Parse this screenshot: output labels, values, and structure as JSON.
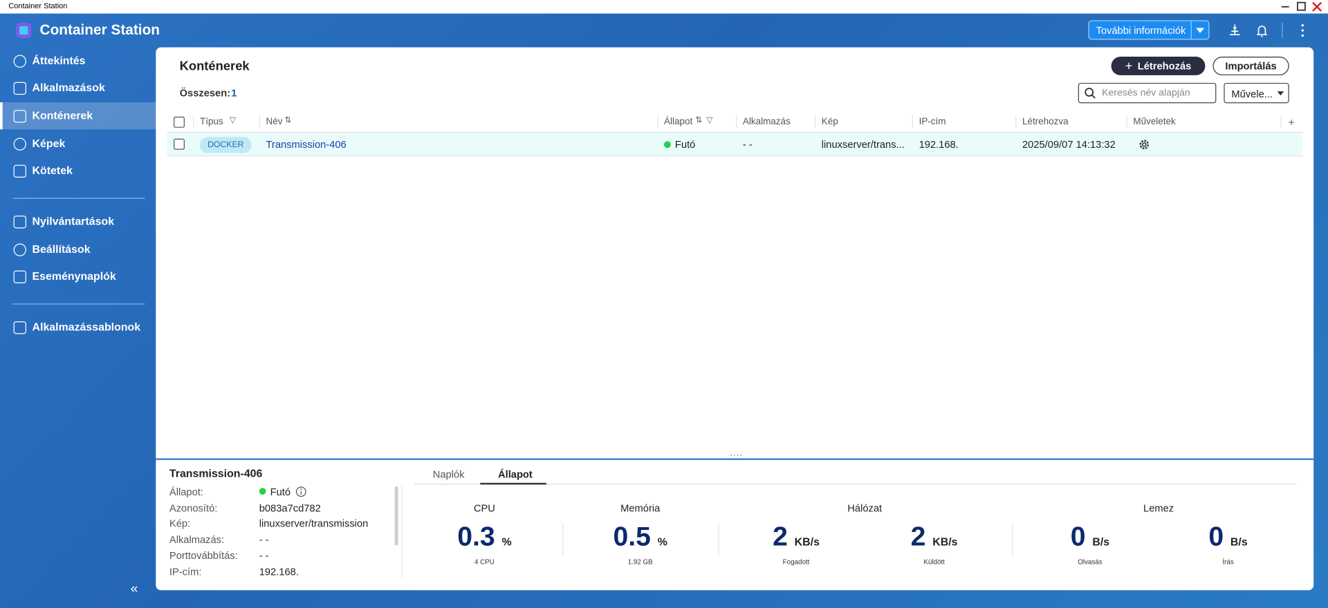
{
  "window_title": "Container Station",
  "app_title": "Container Station",
  "header": {
    "more_info": "További információk"
  },
  "sidebar": {
    "items": [
      "Áttekintés",
      "Alkalmazások",
      "Konténerek",
      "Képek",
      "Kötetek",
      "Nyilvántartások",
      "Beállítások",
      "Eseménynaplók",
      "Alkalmazássablonok"
    ]
  },
  "main": {
    "title": "Konténerek",
    "total_label": "Összesen:",
    "total": 1,
    "create": "Létrehozás",
    "import": "Importálás",
    "search_placeholder": "Keresés név alapján",
    "actions": "Művele..."
  },
  "table": {
    "columns": [
      "Típus",
      "Név",
      "Állapot",
      "Alkalmazás",
      "Kép",
      "IP-cím",
      "Létrehozva",
      "Műveletek"
    ],
    "rows": [
      [
        "DOCKER",
        "Transmission-406",
        "Futó",
        "- -",
        "linuxserver/trans...",
        "192.168.",
        "2025/09/07 14:13:32"
      ]
    ]
  },
  "detail": {
    "title": "Transmission-406",
    "fields": [
      [
        "Állapot:",
        "Futó"
      ],
      [
        "Azonosító:",
        "b083a7cd782"
      ],
      [
        "Kép:",
        "linuxserver/transmission"
      ],
      [
        "Alkalmazás:",
        "- -"
      ],
      [
        "Porttovábbítás:",
        "- -"
      ],
      [
        "IP-cím:",
        "192.168."
      ]
    ],
    "tabs": [
      "Naplók",
      "Állapot"
    ],
    "groups": [
      "CPU",
      "Memória",
      "Hálózat",
      "Lemez"
    ],
    "metrics": [
      {
        "value": 0.3,
        "unit": "%",
        "caption": "4 CPU"
      },
      {
        "value": 0.5,
        "unit": "%",
        "caption": "1.92 GB"
      },
      {
        "value": 2,
        "unit": "KB/s",
        "caption": "Fogadott"
      },
      {
        "value": 2,
        "unit": "KB/s",
        "caption": "Küldött"
      },
      {
        "value": 0,
        "unit": "B/s",
        "caption": "Olvasás"
      },
      {
        "value": 0,
        "unit": "B/s",
        "caption": "Írás"
      }
    ]
  }
}
